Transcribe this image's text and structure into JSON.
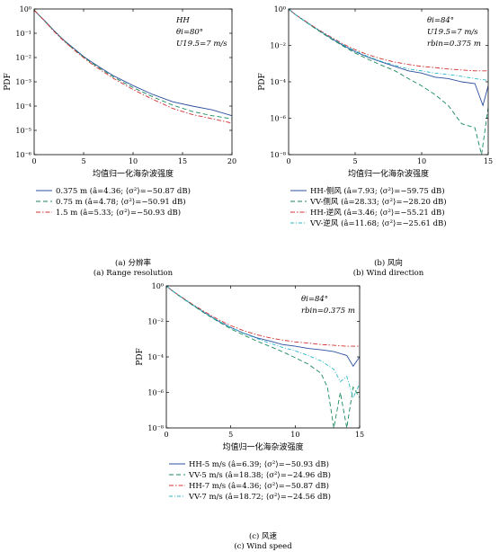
{
  "chart_data": [
    {
      "type": "line",
      "id": "a",
      "yscale": "log",
      "xlim": [
        0,
        20
      ],
      "ylim": [
        1e-06,
        1
      ],
      "xticks": [
        "0",
        "5",
        "10",
        "15",
        "20"
      ],
      "yticks": [
        "10⁰",
        "10⁻¹",
        "10⁻²",
        "10⁻³",
        "10⁻⁴",
        "10⁻⁵",
        "10⁻⁶"
      ],
      "xlabel": "均值归一化海杂波强度",
      "ylabel": "PDF",
      "annotations": [
        "HH",
        "θi=80°",
        "U19.5=7 m/s"
      ],
      "caption_cn": "(a) 分辨率",
      "caption_en": "(a) Range resolution",
      "series": [
        {
          "name": "0.375 m (â=4.36; ⟨σ²⟩=−50.87 dB)",
          "color": "#2b4f9e",
          "dash": "",
          "x": [
            0,
            0.5,
            1,
            2,
            3,
            4,
            5,
            6,
            7,
            8,
            10,
            12,
            14,
            16,
            18,
            20
          ],
          "y": [
            0.9,
            0.55,
            0.35,
            0.13,
            0.052,
            0.024,
            0.011,
            0.0058,
            0.0032,
            0.0018,
            0.0007,
            0.0003,
            0.00015,
            0.0001,
            7e-05,
            4e-05
          ]
        },
        {
          "name": "0.75 m (â=4.78; ⟨σ²⟩=−50.91 dB)",
          "color": "#1a8a5a",
          "dash": "5,3",
          "x": [
            0,
            0.5,
            1,
            2,
            3,
            4,
            5,
            6,
            7,
            8,
            10,
            12,
            14,
            16,
            18,
            20
          ],
          "y": [
            0.9,
            0.55,
            0.34,
            0.125,
            0.05,
            0.022,
            0.0105,
            0.0053,
            0.0029,
            0.0016,
            0.00058,
            0.00024,
            0.00011,
            6e-05,
            4e-05,
            3e-05
          ]
        },
        {
          "name": "1.5 m (â=5.33; ⟨σ²⟩=−50.93 dB)",
          "color": "#d03030",
          "dash": "5,2,1.5,2",
          "x": [
            0,
            0.5,
            1,
            2,
            3,
            4,
            5,
            6,
            7,
            8,
            10,
            12,
            14,
            16,
            18,
            20
          ],
          "y": [
            0.9,
            0.55,
            0.34,
            0.12,
            0.048,
            0.021,
            0.0098,
            0.0048,
            0.0026,
            0.0014,
            0.00048,
            0.00019,
            8e-05,
            4.5e-05,
            3e-05,
            2e-05
          ]
        }
      ]
    },
    {
      "type": "line",
      "id": "b",
      "yscale": "log",
      "xlim": [
        0,
        15
      ],
      "ylim": [
        1e-08,
        1
      ],
      "xticks": [
        "0",
        "5",
        "10",
        "15"
      ],
      "yticks": [
        "10⁰",
        "10⁻²",
        "10⁻⁴",
        "10⁻⁶",
        "10⁻⁸"
      ],
      "xlabel": "均值归一化海杂波强度",
      "ylabel": "PDF",
      "annotations": [
        "θi=84°",
        "U19.5=7 m/s",
        "rbin=0.375 m"
      ],
      "caption_cn": "(b) 风向",
      "caption_en": "(b) Wind direction",
      "series": [
        {
          "name": "HH-侧风 (â=7.93; ⟨σ²⟩=−59.75 dB)",
          "color": "#2b4f9e",
          "dash": "",
          "x": [
            0,
            0.5,
            1,
            2,
            3,
            4,
            5,
            6,
            7,
            8,
            9,
            10,
            11,
            12,
            13,
            14,
            14.6,
            15
          ],
          "y": [
            1,
            0.5,
            0.28,
            0.09,
            0.03,
            0.011,
            0.0045,
            0.0022,
            0.0012,
            0.0007,
            0.0004,
            0.0003,
            0.00018,
            0.00015,
            0.0001,
            8e-05,
            5e-06,
            6e-05
          ]
        },
        {
          "name": "VV-侧风 (â=28.33; ⟨σ²⟩=−28.20 dB)",
          "color": "#1a8a5a",
          "dash": "5,3",
          "x": [
            0,
            0.5,
            1,
            2,
            3,
            4,
            5,
            6,
            7,
            8,
            9,
            10,
            11,
            12,
            13,
            14,
            14.5,
            15
          ],
          "y": [
            1,
            0.5,
            0.27,
            0.085,
            0.028,
            0.01,
            0.0038,
            0.0017,
            0.0008,
            0.0004,
            0.00015,
            6e-05,
            2e-05,
            5e-06,
            5e-07,
            3e-07,
            1e-08,
            4e-06
          ]
        },
        {
          "name": "HH-逆风 (â=3.46; ⟨σ²⟩=−55.21 dB)",
          "color": "#d03030",
          "dash": "5,2,1.5,2",
          "x": [
            0,
            0.5,
            1,
            2,
            3,
            4,
            5,
            6,
            7,
            8,
            9,
            10,
            11,
            12,
            13,
            14,
            15
          ],
          "y": [
            1,
            0.5,
            0.29,
            0.095,
            0.034,
            0.013,
            0.0058,
            0.003,
            0.0018,
            0.0012,
            0.0009,
            0.0007,
            0.0006,
            0.0005,
            0.00045,
            0.0004,
            0.0004
          ]
        },
        {
          "name": "VV-逆风 (â=11.68; ⟨σ²⟩=−25.61 dB)",
          "color": "#2ab8c8",
          "dash": "4,2,1,2",
          "x": [
            0,
            0.5,
            1,
            2,
            3,
            4,
            5,
            6,
            7,
            8,
            9,
            10,
            11,
            12,
            13,
            14,
            15
          ],
          "y": [
            1,
            0.5,
            0.28,
            0.09,
            0.031,
            0.012,
            0.005,
            0.0024,
            0.0013,
            0.0008,
            0.0005,
            0.0004,
            0.0003,
            0.00025,
            0.0002,
            0.00015,
            0.00012
          ]
        }
      ]
    },
    {
      "type": "line",
      "id": "c",
      "yscale": "log",
      "xlim": [
        0,
        15
      ],
      "ylim": [
        1e-08,
        1
      ],
      "xticks": [
        "0",
        "5",
        "10",
        "15"
      ],
      "yticks": [
        "10⁰",
        "10⁻²",
        "10⁻⁴",
        "10⁻⁶",
        "10⁻⁸"
      ],
      "xlabel": "均值归一化海杂波强度",
      "ylabel": "PDF",
      "annotations": [
        "θi=84°",
        "rbin=0.375 m"
      ],
      "caption_cn": "(c) 风速",
      "caption_en": "(c) Wind speed",
      "series": [
        {
          "name": "HH-5 m/s (â=6.39; ⟨σ²⟩=−50.93 dB)",
          "color": "#2b4f9e",
          "dash": "",
          "x": [
            0,
            0.5,
            1,
            2,
            3,
            4,
            5,
            6,
            7,
            8,
            9,
            10,
            11,
            12,
            13,
            14,
            14.5,
            15
          ],
          "y": [
            1,
            0.5,
            0.28,
            0.09,
            0.03,
            0.011,
            0.0045,
            0.0022,
            0.0012,
            0.0008,
            0.0005,
            0.0004,
            0.0003,
            0.00025,
            0.0002,
            0.00012,
            3e-05,
            0.0001
          ]
        },
        {
          "name": "VV-5 m/s (â=18.38; ⟨σ²⟩=−24.96 dB)",
          "color": "#1a8a5a",
          "dash": "5,3",
          "x": [
            0,
            0.5,
            1,
            2,
            3,
            4,
            5,
            6,
            7,
            8,
            9,
            10,
            11,
            12,
            12.5,
            13,
            13.5,
            14,
            14.5,
            15
          ],
          "y": [
            1,
            0.5,
            0.27,
            0.085,
            0.028,
            0.01,
            0.0038,
            0.0017,
            0.0008,
            0.0004,
            0.0002,
            9e-05,
            4e-05,
            1.2e-05,
            2e-06,
            1e-08,
            1e-06,
            1e-08,
            2e-06,
            5e-07
          ]
        },
        {
          "name": "HH-7 m/s (â=4.36; ⟨σ²⟩=−50.87 dB)",
          "color": "#d03030",
          "dash": "5,2,1.5,2",
          "x": [
            0,
            0.5,
            1,
            2,
            3,
            4,
            5,
            6,
            7,
            8,
            9,
            10,
            11,
            12,
            13,
            14,
            15
          ],
          "y": [
            1,
            0.5,
            0.29,
            0.095,
            0.034,
            0.013,
            0.0058,
            0.003,
            0.0018,
            0.0012,
            0.0009,
            0.0007,
            0.0006,
            0.0005,
            0.00045,
            0.0004,
            0.0004
          ]
        },
        {
          "name": "VV-7 m/s (â=18.72; ⟨σ²⟩=−24.56 dB)",
          "color": "#2ab8c8",
          "dash": "4,2,1,2",
          "x": [
            0,
            0.5,
            1,
            2,
            3,
            4,
            5,
            6,
            7,
            8,
            9,
            10,
            11,
            12,
            13,
            13.5,
            14,
            14.5,
            15
          ],
          "y": [
            1,
            0.5,
            0.28,
            0.09,
            0.03,
            0.011,
            0.0045,
            0.0021,
            0.0011,
            0.0006,
            0.00035,
            0.00022,
            0.00012,
            6e-05,
            2e-05,
            4e-06,
            8e-06,
            5e-07,
            3e-06
          ]
        }
      ]
    }
  ]
}
